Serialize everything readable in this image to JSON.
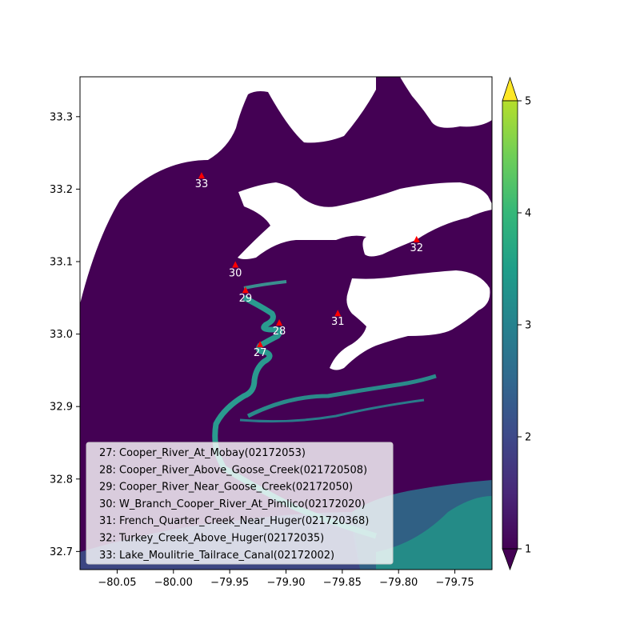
{
  "chart_data": {
    "type": "heatmap",
    "title": "",
    "xlabel": "",
    "ylabel": "",
    "xlim": [
      -80.083,
      -79.717
    ],
    "ylim": [
      32.675,
      33.355
    ],
    "x_ticks": [
      {
        "value": -80.05,
        "label": "−80.05"
      },
      {
        "value": -80.0,
        "label": "−80.00"
      },
      {
        "value": -79.95,
        "label": "−79.95"
      },
      {
        "value": -79.9,
        "label": "−79.90"
      },
      {
        "value": -79.85,
        "label": "−79.85"
      },
      {
        "value": -79.8,
        "label": "−79.80"
      },
      {
        "value": -79.75,
        "label": "−79.75"
      }
    ],
    "y_ticks": [
      {
        "value": 32.7,
        "label": "32.7"
      },
      {
        "value": 32.8,
        "label": "32.8"
      },
      {
        "value": 32.9,
        "label": "32.9"
      },
      {
        "value": 33.0,
        "label": "33.0"
      },
      {
        "value": 33.1,
        "label": "33.1"
      },
      {
        "value": 33.2,
        "label": "33.2"
      },
      {
        "value": 33.3,
        "label": "33.3"
      }
    ],
    "colorbar": {
      "min": 1,
      "max": 5,
      "extend": "both",
      "colormap": "viridis",
      "ticks": [
        {
          "value": 1,
          "label": "1"
        },
        {
          "value": 2,
          "label": "2"
        },
        {
          "value": 3,
          "label": "3"
        },
        {
          "value": 4,
          "label": "4"
        },
        {
          "value": 5,
          "label": "5"
        }
      ]
    },
    "stations": [
      {
        "id": "27",
        "name": "Cooper_River_At_Mobay(02172053)",
        "lon": -79.923,
        "lat": 32.985
      },
      {
        "id": "28",
        "name": "Cooper_River_Above_Goose_Creek(021720508)",
        "lon": -79.906,
        "lat": 33.015
      },
      {
        "id": "29",
        "name": "Cooper_River_Near_Goose_Creek(02172050)",
        "lon": -79.936,
        "lat": 33.06
      },
      {
        "id": "30",
        "name": "W_Branch_Cooper_River_At_Pimlico(02172020)",
        "lon": -79.945,
        "lat": 33.095
      },
      {
        "id": "31",
        "name": "French_Quarter_Creek_Near_Huger(021720368)",
        "lon": -79.854,
        "lat": 33.028
      },
      {
        "id": "32",
        "name": "Turkey_Creek_Above_Huger(02172035)",
        "lon": -79.784,
        "lat": 33.13
      },
      {
        "id": "33",
        "name": "Lake_Moulitrie_Tailrace_Canal(02172002)",
        "lon": -79.975,
        "lat": 33.218
      }
    ],
    "legend": {
      "placement": "lower-left",
      "entries": [
        "27: Cooper_River_At_Mobay(02172053)",
        "28: Cooper_River_Above_Goose_Creek(021720508)",
        "29: Cooper_River_Near_Goose_Creek(02172050)",
        "30: W_Branch_Cooper_River_At_Pimlico(02172020)",
        "31: French_Quarter_Creek_Near_Huger(021720368)",
        "32: Turkey_Creek_Above_Huger(02172035)",
        "33: Lake_Moulitrie_Tailrace_Canal(02172002)"
      ]
    },
    "colors": {
      "low_value": "#440154",
      "mid_value": "#31688e",
      "high_value": "#22a884",
      "marker": "#ff0000",
      "no_data": "#ffffff"
    },
    "grid": false
  }
}
